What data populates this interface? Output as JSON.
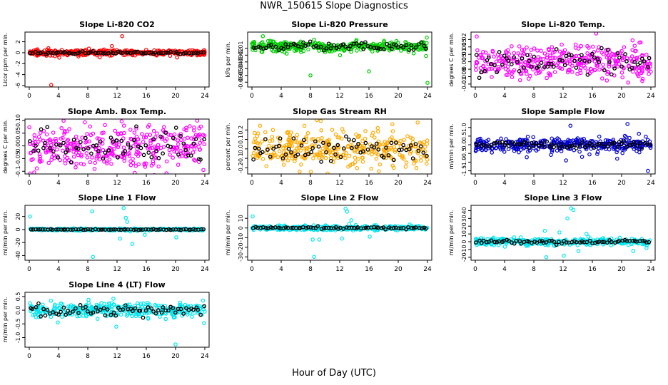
{
  "figure": {
    "title": "NWR_150615  Slope Diagnostics",
    "xlabel": "Hour of Day (UTC)"
  },
  "chart_data": [
    {
      "type": "scatter",
      "title": "Slope Li-820 CO2",
      "ylabel": "Licor ppm per min.",
      "color": "#ff0000",
      "xlim": [
        0,
        24
      ],
      "ylim": [
        -6,
        3.5
      ],
      "xticks": [
        0,
        4,
        8,
        12,
        16,
        20,
        24
      ],
      "xtick_labels": [
        "0",
        "4",
        "8",
        "12",
        "16",
        "20",
        "24"
      ],
      "yticks": [
        -6,
        -4,
        -2,
        0,
        2
      ],
      "ytick_labels": [
        "-6",
        "-4",
        "-2",
        "0",
        "2"
      ],
      "noise_sd": 0.25,
      "black_sd": 0.12,
      "outliers": [
        [
          3.0,
          -5.9
        ],
        [
          12.7,
          3.0
        ],
        [
          11.3,
          1.2
        ],
        [
          4.1,
          -0.9
        ]
      ]
    },
    {
      "type": "scatter",
      "title": "Slope Li-820 Pressure",
      "ylabel": "kPa per min.",
      "color": "#00cc00",
      "xlim": [
        0,
        24
      ],
      "ylim": [
        -0.065,
        0.012
      ],
      "xticks": [
        0,
        4,
        8,
        12,
        16,
        20,
        24
      ],
      "xtick_labels": [
        "0",
        "4",
        "8",
        "12",
        "16",
        "20",
        "24"
      ],
      "yticks": [
        -0.06,
        -0.05,
        -0.04,
        -0.03,
        -0.02,
        -0.01
      ],
      "ytick_labels": [
        "-0.06",
        "-0.05",
        "-0.04",
        "-0.03",
        "-0.02",
        "-0.01"
      ],
      "noise_sd": 0.004,
      "black_sd": 0.003,
      "center": -0.007,
      "outliers": [
        [
          8.0,
          -0.05
        ],
        [
          16.0,
          -0.044
        ],
        [
          24.0,
          -0.061
        ],
        [
          1.5,
          0.008
        ],
        [
          23.9,
          0.006
        ]
      ]
    },
    {
      "type": "scatter",
      "title": "Slope Li-820 Temp.",
      "ylabel": "degrees C per min.",
      "color": "#ff00ff",
      "xlim": [
        0,
        24
      ],
      "ylim": [
        -0.011,
        0.024
      ],
      "xticks": [
        0,
        4,
        8,
        12,
        16,
        20,
        24
      ],
      "xtick_labels": [
        "0",
        "4",
        "8",
        "12",
        "16",
        "20",
        "24"
      ],
      "yticks": [
        -0.01,
        -0.005,
        0,
        0.005,
        0.01,
        0.015,
        0.02
      ],
      "ytick_labels": [
        "-0.01",
        "-0.005",
        "0",
        "0.005",
        "0.01",
        "0.015",
        "0.02"
      ],
      "noise_sd": 0.0055,
      "black_sd": 0.004,
      "center": 0.005,
      "outliers": [
        [
          0.2,
          0.022
        ],
        [
          20.9,
          -0.009
        ],
        [
          22.6,
          0.018
        ]
      ]
    },
    {
      "type": "scatter",
      "title": "Slope Amb. Box Temp.",
      "ylabel": "degrees C per min.",
      "color": "#ff00ff",
      "xlim": [
        0,
        24
      ],
      "ylim": [
        -0.105,
        0.1
      ],
      "xticks": [
        0,
        4,
        8,
        12,
        16,
        20,
        24
      ],
      "xtick_labels": [
        "0",
        "4",
        "8",
        "12",
        "16",
        "20",
        "24"
      ],
      "yticks": [
        -0.1,
        -0.05,
        0,
        0.05,
        0.1
      ],
      "ytick_labels": [
        "-0.1",
        "-0.05",
        "0.00",
        "0.05",
        "0.10"
      ],
      "noise_sd": 0.045,
      "black_sd": 0.035,
      "outliers": [
        [
          23.8,
          -0.095
        ],
        [
          16.4,
          0.082
        ]
      ]
    },
    {
      "type": "scatter",
      "title": "Slope Gas Stream RH",
      "ylabel": "percent per min.",
      "color": "#ffaa00",
      "xlim": [
        0,
        24
      ],
      "ylim": [
        -0.25,
        0.3
      ],
      "xticks": [
        0,
        4,
        8,
        12,
        16,
        20,
        24
      ],
      "xtick_labels": [
        "0",
        "4",
        "8",
        "12",
        "16",
        "20",
        "24"
      ],
      "yticks": [
        -0.2,
        -0.1,
        0,
        0.1,
        0.2
      ],
      "ytick_labels": [
        "-0.2",
        "-0.1",
        "0.0",
        "0.1",
        "0.2"
      ],
      "noise_sd": 0.09,
      "black_sd": 0.06,
      "outliers": [
        [
          19.2,
          0.26
        ],
        [
          17.2,
          0.22
        ]
      ]
    },
    {
      "type": "scatter",
      "title": "Slope Sample Flow",
      "ylabel": "ml/min per min.",
      "color": "#0000cc",
      "xlim": [
        0,
        24
      ],
      "ylim": [
        -1.6,
        1.4
      ],
      "xticks": [
        0,
        4,
        8,
        12,
        16,
        20,
        24
      ],
      "xtick_labels": [
        "0",
        "4",
        "8",
        "12",
        "16",
        "20",
        "24"
      ],
      "yticks": [
        -1.5,
        -1,
        -0.5,
        0,
        0.5,
        1
      ],
      "ytick_labels": [
        "-1.5",
        "-1.0",
        "-0.5",
        "0.0",
        "0.5",
        "1.0"
      ],
      "noise_sd": 0.2,
      "black_sd": 0.1,
      "outliers": [
        [
          23.6,
          -1.5
        ],
        [
          20.8,
          1.2
        ],
        [
          13.0,
          1.1
        ],
        [
          12.4,
          -0.9
        ],
        [
          19.4,
          -0.8
        ],
        [
          14.6,
          -0.7
        ]
      ]
    },
    {
      "type": "scatter",
      "title": "Slope Line 1 Flow",
      "ylabel": "ml/min per min.",
      "color": "#00e5ee",
      "xlim": [
        0,
        24
      ],
      "ylim": [
        -45,
        35
      ],
      "xticks": [
        0,
        4,
        8,
        12,
        16,
        20,
        24
      ],
      "xtick_labels": [
        "0",
        "4",
        "8",
        "12",
        "16",
        "20",
        "24"
      ],
      "yticks": [
        -40,
        -20,
        0,
        20
      ],
      "ytick_labels": [
        "-40",
        "-20",
        "0",
        "20"
      ],
      "noise_sd": 0.8,
      "black_sd": 0.3,
      "outliers": [
        [
          8.7,
          -42
        ],
        [
          12.9,
          33
        ],
        [
          8.6,
          28
        ],
        [
          13.2,
          18
        ],
        [
          13.4,
          12
        ],
        [
          14.1,
          -22
        ],
        [
          12.4,
          -14
        ],
        [
          0.1,
          20
        ],
        [
          20.1,
          -12
        ],
        [
          15.8,
          -8
        ],
        [
          13.8,
          -3
        ]
      ]
    },
    {
      "type": "scatter",
      "title": "Slope Line 2 Flow",
      "ylabel": "ml/min per min.",
      "color": "#00e5ee",
      "xlim": [
        0,
        24
      ],
      "ylim": [
        -32,
        22
      ],
      "xticks": [
        0,
        4,
        8,
        12,
        16,
        20,
        24
      ],
      "xtick_labels": [
        "0",
        "4",
        "8",
        "12",
        "16",
        "20",
        "24"
      ],
      "yticks": [
        -30,
        -20,
        -10,
        0,
        10
      ],
      "ytick_labels": [
        "-30",
        "-20",
        "-10",
        "0",
        "10"
      ],
      "noise_sd": 1.2,
      "black_sd": 0.6,
      "outliers": [
        [
          8.5,
          -30
        ],
        [
          12.8,
          20
        ],
        [
          13.0,
          17
        ],
        [
          13.6,
          8
        ],
        [
          12.3,
          -11
        ],
        [
          8.3,
          -12
        ],
        [
          9.2,
          -12
        ],
        [
          0.1,
          12
        ],
        [
          16.1,
          -9
        ],
        [
          13.3,
          4
        ]
      ]
    },
    {
      "type": "scatter",
      "title": "Slope Line 3 Flow",
      "ylabel": "ml/min per min.",
      "color": "#00e5ee",
      "xlim": [
        0,
        24
      ],
      "ylim": [
        -22,
        45
      ],
      "xticks": [
        0,
        4,
        8,
        12,
        16,
        20,
        24
      ],
      "xtick_labels": [
        "0",
        "4",
        "8",
        "12",
        "16",
        "20",
        "24"
      ],
      "yticks": [
        -20,
        -10,
        0,
        10,
        20,
        30,
        40
      ],
      "ytick_labels": [
        "-20",
        "-10",
        "0",
        "10",
        "20",
        "30",
        "40"
      ],
      "noise_sd": 2.2,
      "black_sd": 1.2,
      "outliers": [
        [
          13.1,
          43
        ],
        [
          13.4,
          41
        ],
        [
          12.6,
          30
        ],
        [
          9.7,
          -20
        ],
        [
          12.1,
          -18
        ],
        [
          9.5,
          14
        ],
        [
          11.5,
          12
        ],
        [
          14.1,
          -12
        ],
        [
          15.2,
          10
        ],
        [
          21.6,
          -12
        ],
        [
          23.4,
          -8
        ]
      ]
    },
    {
      "type": "scatter",
      "title": "Slope Line 4 (LT) Flow",
      "ylabel": "ml/min per min.",
      "color": "#00e5ee",
      "xlim": [
        0,
        24
      ],
      "ylim": [
        -1.3,
        0.6
      ],
      "xticks": [
        0,
        4,
        8,
        12,
        16,
        20,
        24
      ],
      "xtick_labels": [
        "0",
        "4",
        "8",
        "12",
        "16",
        "20",
        "24"
      ],
      "yticks": [
        -1,
        -0.5,
        0,
        0.5
      ],
      "ytick_labels": [
        "-1.0",
        "-0.5",
        "0.0",
        "0.5"
      ],
      "noise_sd": 0.13,
      "black_sd": 0.1,
      "outliers": [
        [
          20.0,
          -1.25
        ],
        [
          11.9,
          -0.6
        ],
        [
          3.9,
          -0.45
        ],
        [
          11.5,
          0.42
        ]
      ]
    }
  ]
}
